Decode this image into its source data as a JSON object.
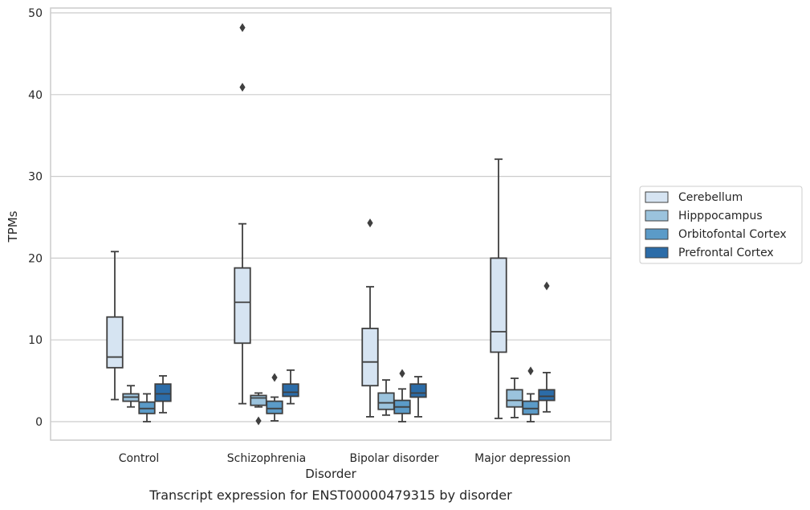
{
  "chart_data": {
    "type": "box",
    "caption": "Transcript expression for ENST00000479315 by disorder",
    "xlabel": "Disorder",
    "ylabel": "TPMs",
    "ylim": [
      -2.3,
      50.5
    ],
    "yticks": [
      0,
      10,
      20,
      30,
      40,
      50
    ],
    "grid": "horizontal",
    "legend_position": "right",
    "categories": [
      "Control",
      "Schizophrenia",
      "Bipolar disorder",
      "Major depression"
    ],
    "series": [
      {
        "name": "Cerebellum",
        "color": "#d6e4f2",
        "boxes": [
          {
            "min": 2.7,
            "q1": 6.6,
            "median": 7.9,
            "q3": 12.8,
            "max": 20.8,
            "outliers": []
          },
          {
            "min": 2.2,
            "q1": 9.6,
            "median": 14.6,
            "q3": 18.8,
            "max": 24.2,
            "outliers": [
              40.9,
              48.2
            ]
          },
          {
            "min": 0.6,
            "q1": 4.4,
            "median": 7.3,
            "q3": 11.4,
            "max": 16.5,
            "outliers": [
              24.3
            ]
          },
          {
            "min": 0.4,
            "q1": 8.5,
            "median": 11.0,
            "q3": 20.0,
            "max": 32.1,
            "outliers": []
          }
        ]
      },
      {
        "name": "Hipppocampus",
        "color": "#9bc3dd",
        "boxes": [
          {
            "min": 1.8,
            "q1": 2.5,
            "median": 3.0,
            "q3": 3.4,
            "max": 4.4,
            "outliers": []
          },
          {
            "min": 1.8,
            "q1": 2.0,
            "median": 2.9,
            "q3": 3.2,
            "max": 3.5,
            "outliers": [
              0.1
            ]
          },
          {
            "min": 0.8,
            "q1": 1.5,
            "median": 2.3,
            "q3": 3.5,
            "max": 5.1,
            "outliers": []
          },
          {
            "min": 0.5,
            "q1": 1.8,
            "median": 2.6,
            "q3": 3.9,
            "max": 5.3,
            "outliers": []
          }
        ]
      },
      {
        "name": "Orbitofontal Cortex",
        "color": "#5b9bc8",
        "boxes": [
          {
            "min": 0.0,
            "q1": 1.0,
            "median": 1.6,
            "q3": 2.4,
            "max": 3.4,
            "outliers": []
          },
          {
            "min": 0.1,
            "q1": 1.0,
            "median": 1.6,
            "q3": 2.5,
            "max": 3.0,
            "outliers": [
              5.4
            ]
          },
          {
            "min": 0.0,
            "q1": 1.0,
            "median": 1.8,
            "q3": 2.6,
            "max": 4.0,
            "outliers": [
              5.9
            ]
          },
          {
            "min": 0.0,
            "q1": 0.9,
            "median": 1.6,
            "q3": 2.5,
            "max": 3.4,
            "outliers": [
              6.2
            ]
          }
        ]
      },
      {
        "name": "Prefrontal Cortex",
        "color": "#2b6ca8",
        "boxes": [
          {
            "min": 1.1,
            "q1": 2.5,
            "median": 3.4,
            "q3": 4.6,
            "max": 5.6,
            "outliers": []
          },
          {
            "min": 2.2,
            "q1": 3.1,
            "median": 3.6,
            "q3": 4.6,
            "max": 6.3,
            "outliers": []
          },
          {
            "min": 0.6,
            "q1": 3.0,
            "median": 3.5,
            "q3": 4.6,
            "max": 5.5,
            "outliers": []
          },
          {
            "min": 1.2,
            "q1": 2.6,
            "median": 3.1,
            "q3": 3.9,
            "max": 6.0,
            "outliers": [
              16.6
            ]
          }
        ]
      }
    ]
  }
}
